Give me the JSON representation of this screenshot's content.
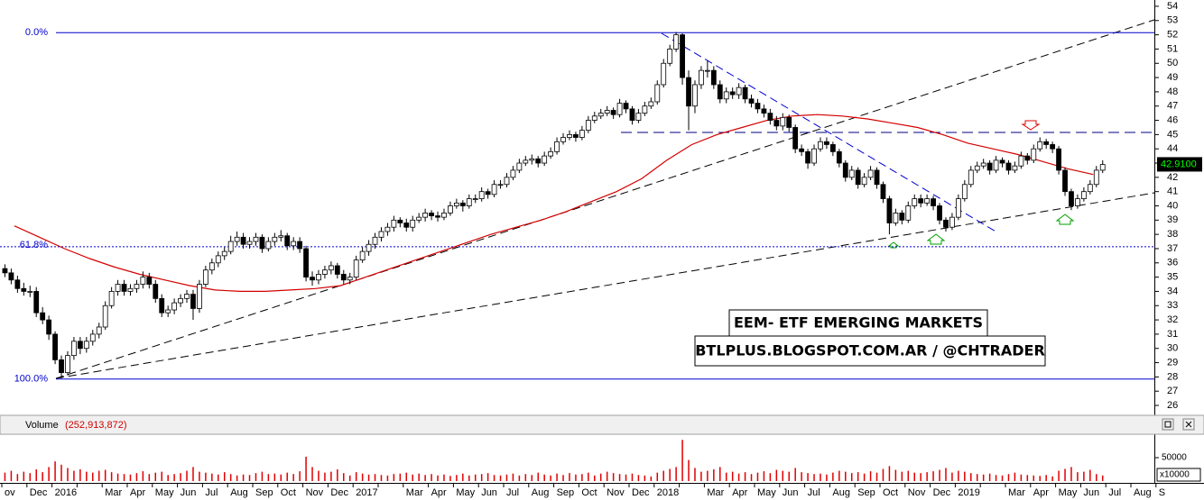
{
  "chart_data": {
    "type": "candlestick",
    "title": "EEM- ETF EMERGING MARKETS",
    "subtitle": "BTLPLUS.BLOGSPOT.COM.AR / @CHTRADER",
    "categories": [
      "ov",
      "Dec",
      "2016",
      null,
      "Mar",
      "Apr",
      "May",
      "Jun",
      "Jul",
      "Aug",
      "Sep",
      "Oct",
      "Nov",
      "Dec",
      "2017",
      null,
      "Mar",
      "Apr",
      "May",
      "Jun",
      "Jul",
      "Aug",
      "Sep",
      "Oct",
      "Nov",
      "Dec",
      "2018",
      null,
      "Mar",
      "Apr",
      "May",
      "Jun",
      "Jul",
      "Aug",
      "Sep",
      "Oct",
      "Nov",
      "Dec",
      "2019",
      null,
      "Mar",
      "Apr",
      "May",
      "Jun",
      "Jul",
      "Aug",
      "S"
    ],
    "up_color": "#ffffff",
    "down_color": "#000000",
    "candles": [
      [
        35.6,
        35.9,
        35.0,
        35.3
      ],
      [
        35.3,
        35.6,
        34.5,
        34.8
      ],
      [
        34.8,
        35.1,
        33.9,
        34.2
      ],
      [
        34.2,
        34.6,
        33.7,
        34.0
      ],
      [
        34.0,
        34.4,
        33.6,
        34.0
      ],
      [
        34.0,
        34.3,
        32.2,
        32.5
      ],
      [
        32.5,
        32.9,
        31.7,
        32.0
      ],
      [
        32.0,
        32.3,
        30.6,
        31.0
      ],
      [
        31.0,
        31.2,
        28.9,
        29.2
      ],
      [
        29.2,
        29.5,
        27.9,
        28.3
      ],
      [
        28.3,
        29.8,
        28.1,
        29.5
      ],
      [
        29.5,
        30.8,
        29.2,
        30.5
      ],
      [
        30.5,
        30.8,
        29.6,
        30.0
      ],
      [
        30.0,
        30.8,
        29.7,
        30.5
      ],
      [
        30.5,
        31.3,
        30.2,
        31.0
      ],
      [
        31.0,
        31.8,
        30.7,
        31.5
      ],
      [
        31.5,
        33.3,
        31.3,
        33.0
      ],
      [
        33.0,
        34.3,
        32.8,
        34.0
      ],
      [
        34.0,
        34.8,
        33.7,
        34.5
      ],
      [
        34.5,
        34.8,
        33.7,
        34.0
      ],
      [
        34.0,
        34.5,
        33.7,
        34.2
      ],
      [
        34.2,
        34.8,
        33.9,
        34.5
      ],
      [
        34.5,
        35.4,
        34.2,
        35.0
      ],
      [
        35.0,
        35.3,
        34.2,
        34.5
      ],
      [
        34.5,
        34.8,
        33.2,
        33.5
      ],
      [
        33.5,
        33.8,
        32.2,
        32.5
      ],
      [
        32.5,
        33.0,
        32.2,
        32.7
      ],
      [
        32.7,
        33.5,
        32.4,
        33.2
      ],
      [
        33.2,
        33.8,
        32.9,
        33.5
      ],
      [
        33.5,
        34.1,
        33.2,
        33.8
      ],
      [
        33.8,
        34.1,
        32.0,
        32.8
      ],
      [
        32.8,
        34.8,
        32.5,
        34.5
      ],
      [
        34.5,
        35.8,
        34.3,
        35.5
      ],
      [
        35.5,
        36.3,
        35.2,
        36.0
      ],
      [
        36.0,
        36.8,
        35.7,
        36.5
      ],
      [
        36.5,
        37.1,
        36.2,
        36.8
      ],
      [
        36.8,
        37.9,
        36.6,
        37.5
      ],
      [
        37.5,
        38.2,
        37.2,
        37.8
      ],
      [
        37.8,
        38.1,
        37.0,
        37.3
      ],
      [
        37.3,
        37.8,
        37.0,
        37.5
      ],
      [
        37.5,
        38.1,
        37.2,
        37.8
      ],
      [
        37.8,
        38.0,
        36.7,
        37.0
      ],
      [
        37.0,
        37.8,
        36.8,
        37.5
      ],
      [
        37.5,
        38.1,
        37.2,
        37.8
      ],
      [
        37.8,
        38.3,
        37.5,
        37.9
      ],
      [
        37.9,
        38.1,
        36.9,
        37.2
      ],
      [
        37.2,
        37.8,
        36.9,
        37.5
      ],
      [
        37.5,
        37.8,
        36.7,
        37.0
      ],
      [
        37.0,
        37.2,
        34.7,
        35.0
      ],
      [
        35.0,
        35.4,
        34.4,
        34.8
      ],
      [
        34.8,
        35.5,
        34.5,
        35.2
      ],
      [
        35.2,
        35.8,
        34.9,
        35.5
      ],
      [
        35.5,
        36.1,
        35.2,
        35.8
      ],
      [
        35.8,
        36.0,
        34.9,
        35.2
      ],
      [
        35.2,
        35.5,
        34.5,
        34.8
      ],
      [
        34.8,
        35.3,
        34.5,
        35.0
      ],
      [
        35.0,
        36.5,
        34.8,
        36.2
      ],
      [
        36.2,
        37.1,
        36.0,
        36.8
      ],
      [
        36.8,
        37.6,
        36.5,
        37.3
      ],
      [
        37.3,
        38.1,
        37.0,
        37.8
      ],
      [
        37.8,
        38.5,
        37.5,
        38.2
      ],
      [
        38.2,
        38.8,
        37.9,
        38.5
      ],
      [
        38.5,
        39.3,
        38.2,
        39.0
      ],
      [
        39.0,
        39.2,
        38.5,
        38.8
      ],
      [
        38.8,
        39.1,
        38.2,
        38.5
      ],
      [
        38.5,
        39.3,
        38.2,
        39.0
      ],
      [
        39.0,
        39.5,
        38.8,
        39.2
      ],
      [
        39.2,
        39.8,
        38.9,
        39.5
      ],
      [
        39.5,
        39.7,
        39.0,
        39.3
      ],
      [
        39.3,
        39.6,
        38.9,
        39.2
      ],
      [
        39.2,
        39.8,
        39.0,
        39.5
      ],
      [
        39.5,
        40.3,
        39.3,
        40.0
      ],
      [
        40.0,
        40.5,
        39.8,
        40.2
      ],
      [
        40.2,
        40.4,
        39.6,
        40.0
      ],
      [
        40.0,
        40.8,
        39.8,
        40.5
      ],
      [
        40.5,
        40.8,
        40.2,
        40.5
      ],
      [
        40.5,
        41.3,
        40.3,
        41.0
      ],
      [
        41.0,
        41.2,
        40.5,
        40.8
      ],
      [
        40.8,
        41.8,
        40.6,
        41.5
      ],
      [
        41.5,
        41.8,
        41.2,
        41.5
      ],
      [
        41.5,
        42.3,
        41.3,
        42.0
      ],
      [
        42.0,
        42.8,
        41.8,
        42.5
      ],
      [
        42.5,
        43.3,
        42.3,
        43.0
      ],
      [
        43.0,
        43.5,
        42.8,
        43.2
      ],
      [
        43.2,
        43.6,
        42.9,
        43.3
      ],
      [
        43.3,
        43.5,
        42.7,
        43.0
      ],
      [
        43.0,
        43.8,
        42.8,
        43.5
      ],
      [
        43.5,
        44.1,
        43.3,
        43.8
      ],
      [
        43.8,
        44.8,
        43.6,
        44.5
      ],
      [
        44.5,
        45.1,
        44.3,
        44.8
      ],
      [
        44.8,
        45.3,
        44.6,
        45.0
      ],
      [
        45.0,
        45.2,
        44.5,
        44.8
      ],
      [
        44.8,
        45.6,
        44.6,
        45.3
      ],
      [
        45.3,
        46.3,
        45.1,
        46.0
      ],
      [
        46.0,
        46.6,
        45.8,
        46.3
      ],
      [
        46.3,
        46.8,
        46.1,
        46.5
      ],
      [
        46.5,
        47.0,
        46.3,
        46.7
      ],
      [
        46.7,
        46.9,
        46.1,
        46.4
      ],
      [
        46.4,
        47.5,
        46.2,
        47.2
      ],
      [
        47.2,
        47.4,
        46.5,
        46.8
      ],
      [
        46.8,
        47.0,
        45.7,
        46.0
      ],
      [
        46.0,
        46.8,
        45.8,
        46.5
      ],
      [
        46.5,
        47.3,
        46.3,
        47.0
      ],
      [
        47.0,
        47.6,
        46.8,
        47.3
      ],
      [
        47.3,
        48.8,
        47.1,
        48.5
      ],
      [
        48.5,
        50.3,
        48.3,
        50.0
      ],
      [
        50.0,
        51.3,
        49.8,
        51.0
      ],
      [
        51.0,
        52.2,
        50.8,
        52.0
      ],
      [
        52.0,
        52.1,
        48.5,
        49.0
      ],
      [
        49.0,
        49.5,
        45.3,
        47.0
      ],
      [
        47.0,
        48.8,
        46.5,
        48.5
      ],
      [
        48.5,
        49.8,
        48.2,
        49.5
      ],
      [
        49.5,
        50.2,
        49.0,
        49.5
      ],
      [
        49.5,
        49.8,
        48.2,
        48.5
      ],
      [
        48.5,
        48.8,
        47.2,
        47.5
      ],
      [
        47.5,
        48.3,
        47.2,
        48.0
      ],
      [
        48.0,
        48.3,
        47.5,
        47.8
      ],
      [
        47.8,
        48.6,
        47.5,
        48.3
      ],
      [
        48.3,
        48.5,
        47.2,
        47.5
      ],
      [
        47.5,
        47.8,
        46.9,
        47.2
      ],
      [
        47.2,
        47.5,
        46.5,
        46.8
      ],
      [
        46.8,
        47.1,
        46.2,
        46.5
      ],
      [
        46.5,
        46.8,
        45.7,
        46.0
      ],
      [
        46.0,
        46.3,
        45.3,
        45.6
      ],
      [
        45.6,
        46.5,
        45.3,
        46.2
      ],
      [
        46.2,
        46.4,
        45.2,
        45.5
      ],
      [
        45.5,
        45.7,
        43.7,
        44.0
      ],
      [
        44.0,
        44.3,
        43.5,
        43.8
      ],
      [
        43.8,
        44.0,
        42.6,
        43.0
      ],
      [
        43.0,
        44.3,
        42.8,
        44.0
      ],
      [
        44.0,
        44.8,
        43.8,
        44.5
      ],
      [
        44.5,
        44.8,
        44.0,
        44.3
      ],
      [
        44.3,
        44.5,
        43.5,
        43.8
      ],
      [
        43.8,
        44.0,
        42.7,
        43.0
      ],
      [
        43.0,
        43.2,
        41.7,
        42.0
      ],
      [
        42.0,
        42.8,
        41.8,
        42.5
      ],
      [
        42.5,
        42.7,
        41.2,
        41.5
      ],
      [
        41.5,
        42.3,
        41.3,
        42.0
      ],
      [
        42.0,
        42.8,
        41.8,
        42.5
      ],
      [
        42.5,
        42.7,
        41.2,
        41.5
      ],
      [
        41.5,
        41.7,
        40.2,
        40.5
      ],
      [
        40.5,
        40.7,
        38.0,
        38.8
      ],
      [
        38.8,
        39.8,
        38.6,
        39.5
      ],
      [
        39.5,
        39.7,
        38.7,
        39.0
      ],
      [
        39.0,
        40.3,
        38.8,
        40.0
      ],
      [
        40.0,
        40.8,
        39.8,
        40.5
      ],
      [
        40.5,
        40.8,
        39.9,
        40.2
      ],
      [
        40.2,
        40.8,
        40.0,
        40.5
      ],
      [
        40.5,
        40.7,
        39.7,
        40.0
      ],
      [
        40.0,
        40.2,
        38.7,
        39.0
      ],
      [
        39.0,
        39.2,
        38.2,
        38.5
      ],
      [
        38.5,
        39.5,
        38.3,
        39.2
      ],
      [
        39.2,
        40.8,
        39.0,
        40.5
      ],
      [
        40.5,
        41.8,
        40.3,
        41.5
      ],
      [
        41.5,
        42.8,
        41.3,
        42.5
      ],
      [
        42.5,
        43.1,
        42.3,
        42.8
      ],
      [
        42.8,
        43.3,
        42.6,
        43.0
      ],
      [
        43.0,
        43.2,
        42.2,
        42.5
      ],
      [
        42.5,
        43.5,
        42.3,
        43.2
      ],
      [
        43.2,
        43.4,
        42.7,
        43.0
      ],
      [
        43.0,
        43.2,
        42.2,
        42.5
      ],
      [
        42.5,
        43.1,
        42.3,
        42.8
      ],
      [
        42.8,
        43.8,
        42.6,
        43.5
      ],
      [
        43.5,
        43.7,
        42.9,
        43.2
      ],
      [
        43.2,
        44.3,
        43.0,
        44.0
      ],
      [
        44.0,
        44.8,
        43.8,
        44.5
      ],
      [
        44.5,
        44.7,
        44.0,
        44.3
      ],
      [
        44.3,
        44.5,
        43.7,
        44.0
      ],
      [
        44.0,
        44.2,
        42.2,
        42.5
      ],
      [
        42.5,
        42.7,
        40.7,
        41.0
      ],
      [
        41.0,
        41.2,
        39.7,
        40.0
      ],
      [
        40.0,
        40.8,
        39.8,
        40.5
      ],
      [
        40.5,
        41.3,
        40.3,
        41.0
      ],
      [
        41.0,
        41.8,
        40.8,
        41.5
      ],
      [
        41.5,
        42.8,
        41.3,
        42.5
      ],
      [
        42.5,
        43.2,
        42.3,
        42.9
      ]
    ],
    "ma": {
      "color": "#d40000",
      "values": [
        38.6,
        37.8,
        37.0,
        36.3,
        35.7,
        35.2,
        34.8,
        34.4,
        34.1,
        34.0,
        34.0,
        34.1,
        34.2,
        34.4,
        35.0,
        35.6,
        36.2,
        36.8,
        37.4,
        38.0,
        38.5,
        39.0,
        39.6,
        40.3,
        41.0,
        41.9,
        43.2,
        44.3,
        45.0,
        45.5,
        46.0,
        46.3,
        46.4,
        46.3,
        46.1,
        45.8,
        45.5,
        45.0,
        44.4,
        44.0,
        43.6,
        43.1,
        42.6,
        42.2
      ]
    },
    "ylim": [
      25.37,
      54.44
    ],
    "yticks": [
      26,
      27,
      28,
      29,
      30,
      31,
      32,
      33,
      34,
      35,
      36,
      37,
      38,
      39,
      40,
      41,
      42,
      43,
      44,
      45,
      46,
      47,
      48,
      49,
      50,
      51,
      52,
      53,
      54
    ],
    "last_price": {
      "value": 42.91,
      "label": "42.9100"
    },
    "fib_levels": [
      {
        "value": 52.15,
        "label": "0.0%"
      },
      {
        "value": 37.13,
        "label": "61.8%"
      },
      {
        "value": 27.85,
        "label": "100.0%"
      }
    ],
    "volume": {
      "title": "Volume",
      "total": "(252,913,872)",
      "color": "#e00000",
      "unit": "x10000",
      "ylim": [
        0,
        100000
      ],
      "yticks": [
        50000
      ],
      "values": [
        18000,
        22000,
        15000,
        20000,
        17000,
        25000,
        19000,
        30000,
        42000,
        35000,
        28000,
        22000,
        25000,
        20000,
        18000,
        22000,
        24000,
        19000,
        16000,
        15000,
        14000,
        17000,
        21000,
        15000,
        18000,
        20000,
        13000,
        15000,
        17000,
        22000,
        30000,
        20000,
        18000,
        16000,
        14000,
        19000,
        15000,
        12000,
        14000,
        13000,
        17000,
        20000,
        15000,
        16000,
        14000,
        18000,
        15000,
        21000,
        52000,
        30000,
        22000,
        18000,
        20000,
        25000,
        17000,
        12000,
        19000,
        16000,
        14000,
        15000,
        13000,
        12000,
        15000,
        16000,
        18000,
        14000,
        16000,
        13000,
        15000,
        12000,
        14000,
        11000,
        13000,
        16000,
        12000,
        14000,
        15000,
        17000,
        13000,
        12000,
        14000,
        16000,
        12000,
        15000,
        13000,
        18000,
        14000,
        12000,
        16000,
        13000,
        17000,
        14000,
        15000,
        18000,
        12000,
        16000,
        20000,
        17000,
        15000,
        14000,
        16000,
        13000,
        12000,
        10000,
        18000,
        22000,
        26000,
        30000,
        88000,
        45000,
        28000,
        20000,
        22000,
        25000,
        30000,
        18000,
        20000,
        16000,
        19000,
        15000,
        18000,
        21000,
        17000,
        24000,
        22000,
        20000,
        28000,
        19000,
        17000,
        15000,
        16000,
        14000,
        18000,
        22000,
        20000,
        17000,
        19000,
        16000,
        21000,
        18000,
        26000,
        32000,
        24000,
        20000,
        22000,
        18000,
        17000,
        19000,
        21000,
        24000,
        28000,
        18000,
        22000,
        20000,
        17000,
        15000,
        14000,
        16000,
        13000,
        12000,
        15000,
        18000,
        14000,
        13000,
        12000,
        11000,
        13000,
        10000,
        22000,
        26000,
        30000,
        19000,
        20000,
        24000,
        15000,
        12000
      ]
    }
  }
}
